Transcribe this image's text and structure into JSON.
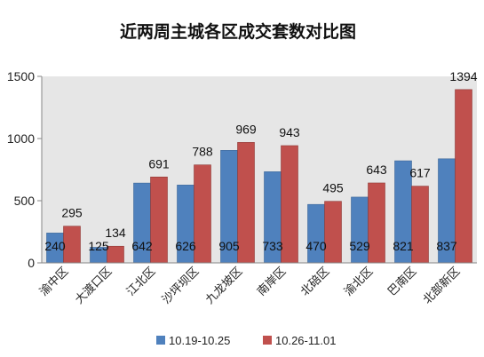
{
  "chart_data": {
    "type": "bar",
    "title": "近两周主城各区成交套数对比图",
    "categories": [
      "渝中区",
      "大渡口区",
      "江北区",
      "沙坪坝区",
      "九龙坡区",
      "南岸区",
      "北碚区",
      "渝北区",
      "巴南区",
      "北部新区"
    ],
    "series": [
      {
        "name": "10.19-10.25",
        "values": [
          240,
          125,
          642,
          626,
          905,
          733,
          470,
          529,
          821,
          837
        ],
        "color": "#4f81bd"
      },
      {
        "name": "10.26-11.01",
        "values": [
          295,
          134,
          691,
          788,
          969,
          943,
          495,
          643,
          617,
          1394
        ],
        "color": "#c0504d"
      }
    ],
    "ylim": [
      0,
      1500
    ],
    "yticks": [
      0,
      500,
      1000,
      1500
    ],
    "xlabel": "",
    "ylabel": "",
    "grid": false,
    "legend": "bottom",
    "plot_background": "#e6e6e6"
  }
}
